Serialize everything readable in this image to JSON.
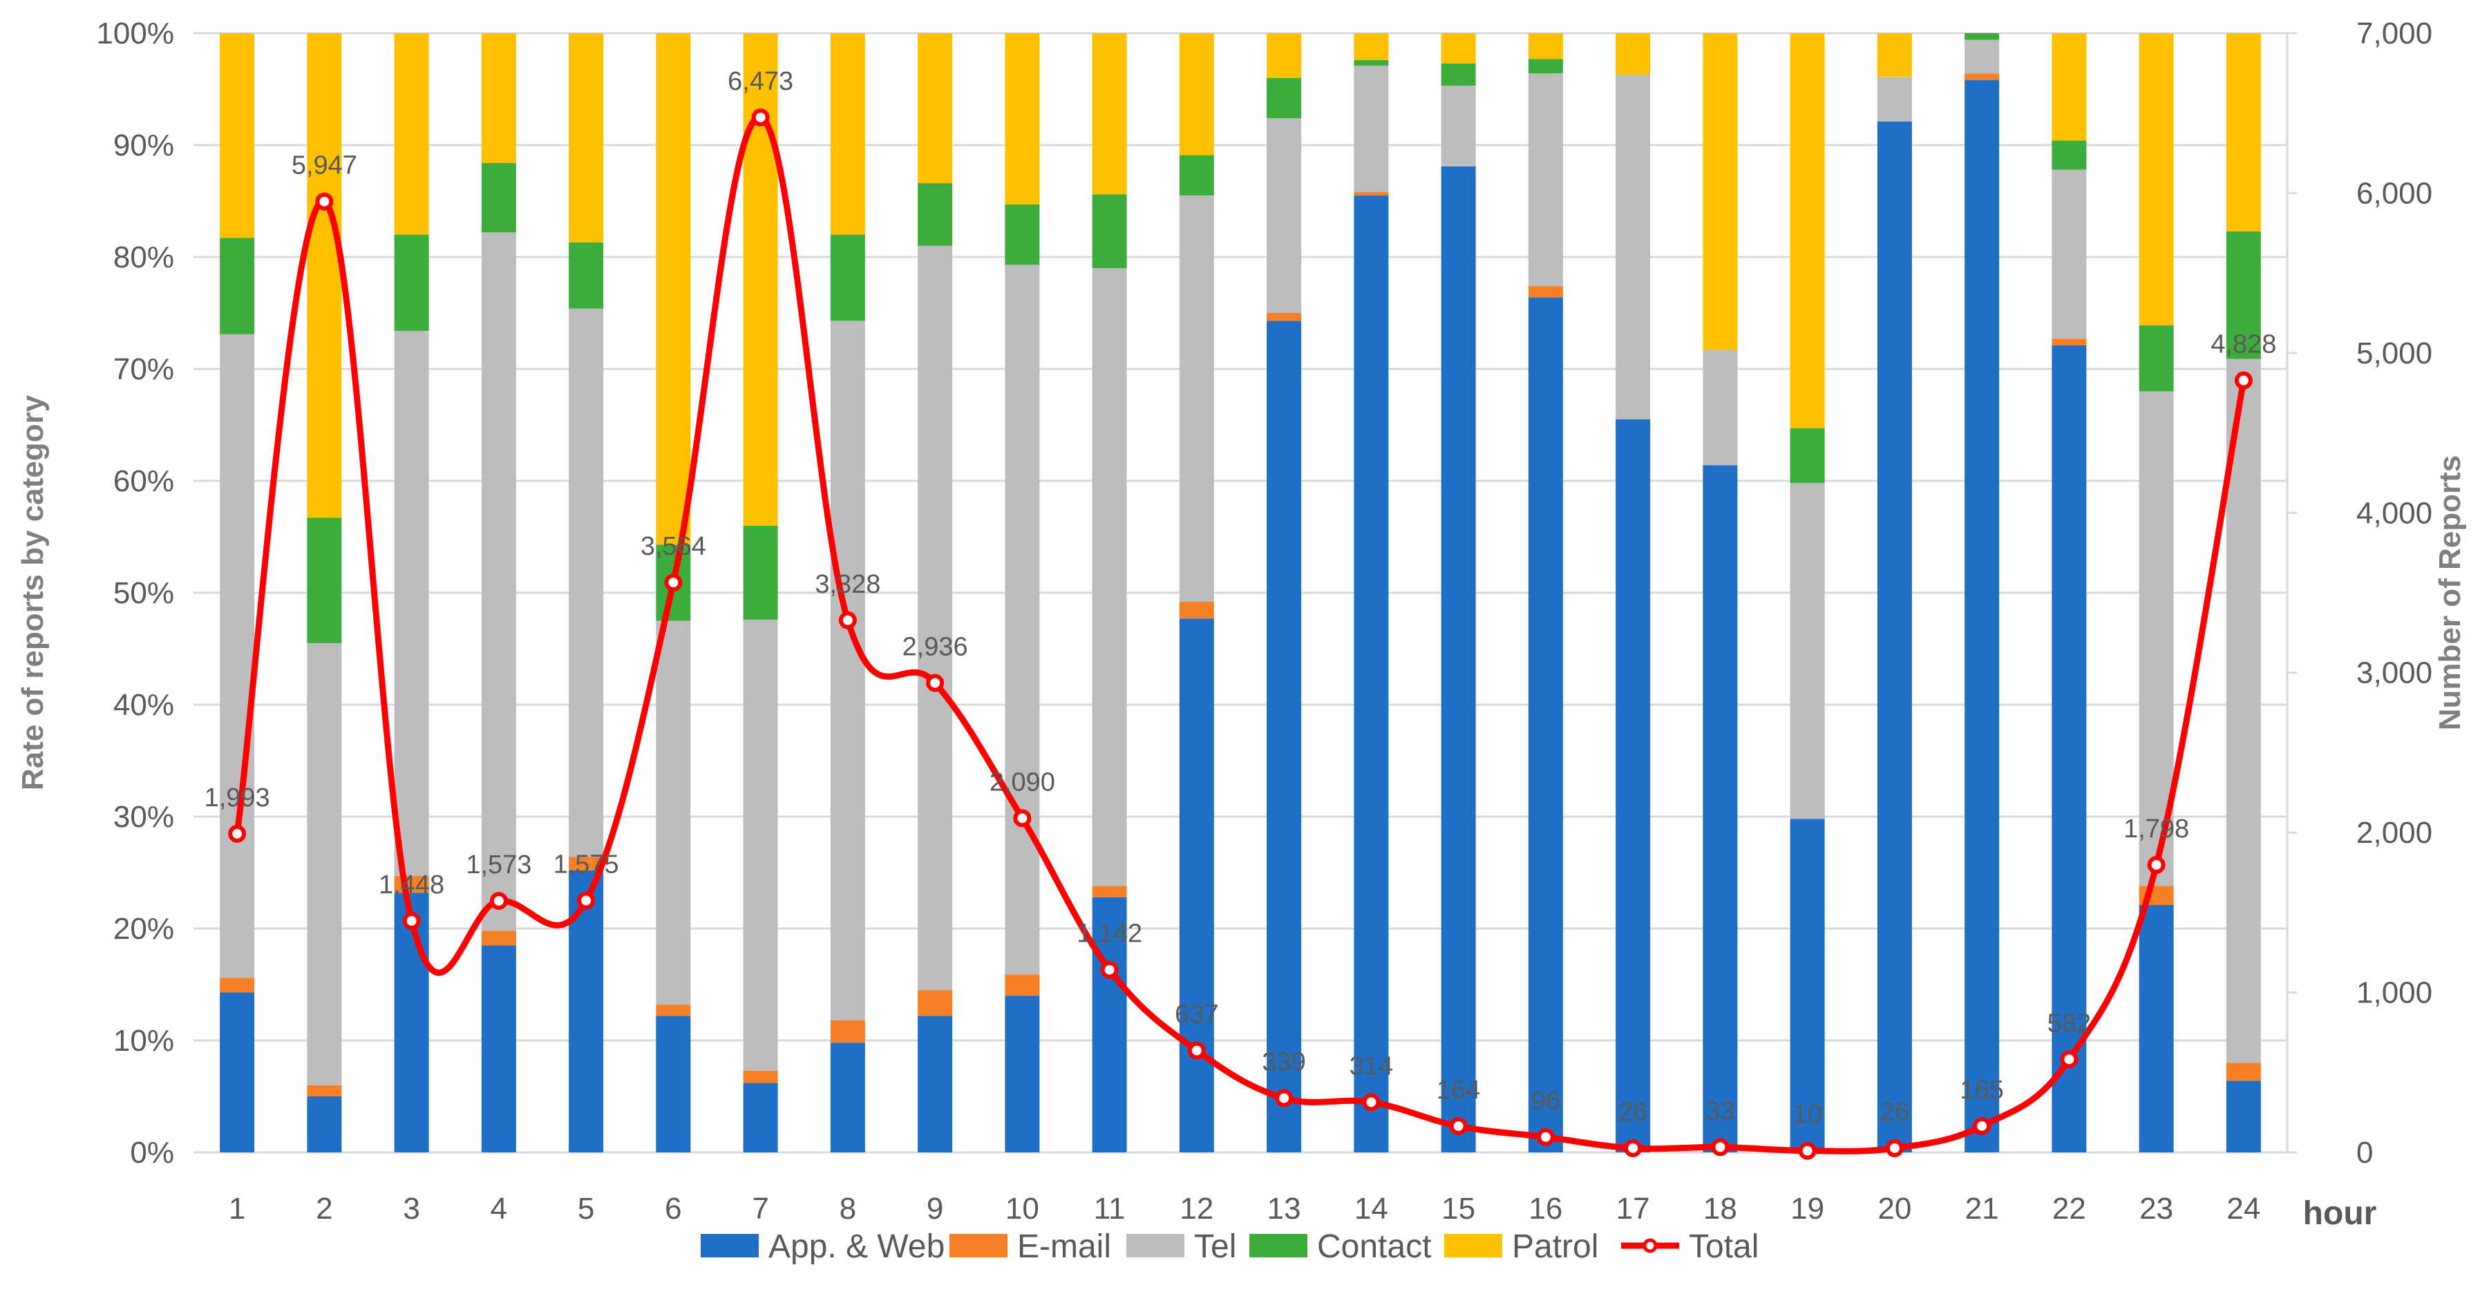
{
  "chart_data": {
    "type": "bar",
    "stacked": true,
    "categories": [
      "1",
      "2",
      "3",
      "4",
      "5",
      "6",
      "7",
      "8",
      "9",
      "10",
      "11",
      "12",
      "13",
      "14",
      "15",
      "16",
      "17",
      "18",
      "19",
      "20",
      "21",
      "22",
      "23",
      "24"
    ],
    "xlabel": "hour",
    "ylabel_left": "Rate of reports by category",
    "ylabel_right": "Number of Reports",
    "ylim_left": [
      0,
      100
    ],
    "ylim_right": [
      0,
      7000
    ],
    "left_ticks": [
      "0%",
      "10%",
      "20%",
      "30%",
      "40%",
      "50%",
      "60%",
      "70%",
      "80%",
      "90%",
      "100%"
    ],
    "right_ticks": [
      "0",
      "1,000",
      "2,000",
      "3,000",
      "4,000",
      "5,000",
      "6,000",
      "7,000"
    ],
    "series": [
      {
        "name": "App. & Web",
        "color": "#1f6fc6",
        "values": [
          14.3,
          5,
          23.2,
          18.5,
          25.2,
          12.2,
          6.2,
          9.8,
          12.2,
          14,
          22.8,
          47.7,
          74.3,
          85.5,
          88.1,
          76.4,
          65.5,
          61.4,
          29.8,
          92.1,
          95.8,
          72.1,
          22.1,
          6.4
        ]
      },
      {
        "name": "E-mail",
        "color": "#f58025",
        "values": [
          1.3,
          1,
          1.5,
          1.3,
          1.2,
          1,
          1.1,
          2,
          2.3,
          1.9,
          1,
          1.5,
          0.7,
          0.3,
          0,
          1,
          0,
          0,
          0,
          0,
          0.6,
          0.6,
          1.7,
          1.6
        ]
      },
      {
        "name": "Tel",
        "color": "#bdbdbd",
        "values": [
          57.5,
          39.5,
          48.7,
          62.4,
          49,
          34.3,
          40.3,
          62.5,
          66.5,
          63.4,
          55.2,
          36.3,
          17.4,
          11.3,
          7.2,
          19,
          30.8,
          10.3,
          30,
          4,
          3,
          15.1,
          44.2,
          62.9
        ]
      },
      {
        "name": "Contact",
        "color": "#3cad3c",
        "values": [
          8.6,
          11.2,
          8.6,
          6.2,
          5.9,
          6.8,
          8.4,
          7.7,
          5.6,
          5.4,
          6.6,
          3.6,
          3.6,
          0.5,
          2,
          1.3,
          0,
          0,
          4.9,
          0,
          0.6,
          2.6,
          5.9,
          11.4
        ]
      },
      {
        "name": "Patrol",
        "color": "#ffc000",
        "values": [
          18.3,
          43.3,
          18,
          11.6,
          18.7,
          45.7,
          44,
          18,
          13.4,
          15.3,
          14.4,
          10.9,
          4,
          2.4,
          2.7,
          2.3,
          3.7,
          28.3,
          35.3,
          3.9,
          0,
          9.6,
          26.1,
          17.7
        ]
      }
    ],
    "total": {
      "name": "Total",
      "color": "#ff0000",
      "values": [
        1993,
        5947,
        1448,
        1573,
        1575,
        3564,
        6473,
        3328,
        2936,
        2090,
        1142,
        637,
        339,
        314,
        164,
        96,
        26,
        33,
        10,
        26,
        165,
        582,
        1798,
        4828
      ],
      "labels": [
        "1,993",
        "5,947",
        "1,448",
        "1,573",
        "1,575",
        "3,564",
        "6,473",
        "3,328",
        "2,936",
        "2,090",
        "1,142",
        "637",
        "339",
        "314",
        "164",
        "96",
        "26",
        "33",
        "10",
        "26",
        "165",
        "582",
        "1,798",
        "4,828"
      ]
    },
    "legend_position": "bottom",
    "grid": true
  },
  "legend_labels": [
    "App. & Web",
    "E-mail",
    "Tel",
    "Contact",
    "Patrol",
    "Total"
  ]
}
